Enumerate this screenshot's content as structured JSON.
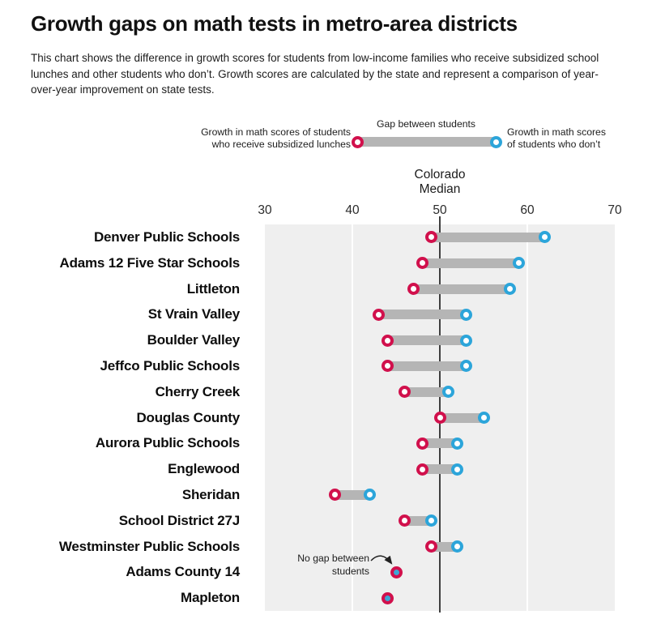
{
  "title": "Growth gaps on math tests in metro-area districts",
  "subtitle": "This chart shows the difference in growth scores for students from low-income families who receive subsidized school lunches and other students who don’t. Growth scores are calculated by the state and represent a comparison of year-over-year improvement on state tests.",
  "legend": {
    "left_line1": "Growth in math scores of students",
    "left_line2": "who receive subsidized lunches",
    "center_label": "Gap between students",
    "right_line1": "Growth in math scores",
    "right_line2": "of students who don’t"
  },
  "median_label": {
    "line1": "Colorado",
    "line2": "Median"
  },
  "annotation": {
    "line1": "No gap between",
    "line2": "students"
  },
  "colors": {
    "subsidized": "#d1104c",
    "non_subsidized": "#2ca5da",
    "no_gap_fill": "#3ea6d6",
    "gap_bar": "#b5b5b5",
    "plot_bg": "#efefef",
    "median_line": "#3f3f3f",
    "text": "#1c1c1c"
  },
  "chart_data": {
    "type": "dumbbell",
    "title": "Growth gaps on math tests in metro-area districts",
    "x_axis": {
      "min": 30,
      "max": 70,
      "ticks": [
        30,
        40,
        50,
        60,
        70
      ]
    },
    "median_value": 50,
    "median_label": "Colorado Median",
    "series_names": [
      "Students who receive subsidized lunches",
      "Students who don't"
    ],
    "legend_position": "top",
    "grid": "vertical-white-on-gray",
    "districts": [
      {
        "name": "Denver Public Schools",
        "subsidized": 49,
        "non_subsidized": 62
      },
      {
        "name": "Adams 12 Five Star Schools",
        "subsidized": 48,
        "non_subsidized": 59
      },
      {
        "name": "Littleton",
        "subsidized": 47,
        "non_subsidized": 58
      },
      {
        "name": "St Vrain Valley",
        "subsidized": 43,
        "non_subsidized": 53
      },
      {
        "name": "Boulder Valley",
        "subsidized": 44,
        "non_subsidized": 53
      },
      {
        "name": "Jeffco Public Schools",
        "subsidized": 44,
        "non_subsidized": 53
      },
      {
        "name": "Cherry Creek",
        "subsidized": 46,
        "non_subsidized": 51
      },
      {
        "name": "Douglas County",
        "subsidized": 50,
        "non_subsidized": 55
      },
      {
        "name": "Aurora Public Schools",
        "subsidized": 48,
        "non_subsidized": 52
      },
      {
        "name": "Englewood",
        "subsidized": 48,
        "non_subsidized": 52
      },
      {
        "name": "Sheridan",
        "subsidized": 38,
        "non_subsidized": 42
      },
      {
        "name": "School District 27J",
        "subsidized": 46,
        "non_subsidized": 49
      },
      {
        "name": "Westminster Public Schools",
        "subsidized": 49,
        "non_subsidized": 52
      },
      {
        "name": "Adams County 14",
        "subsidized": 45,
        "non_subsidized": 45,
        "no_gap": true
      },
      {
        "name": "Mapleton",
        "subsidized": 44,
        "non_subsidized": 44,
        "no_gap": true
      }
    ]
  }
}
